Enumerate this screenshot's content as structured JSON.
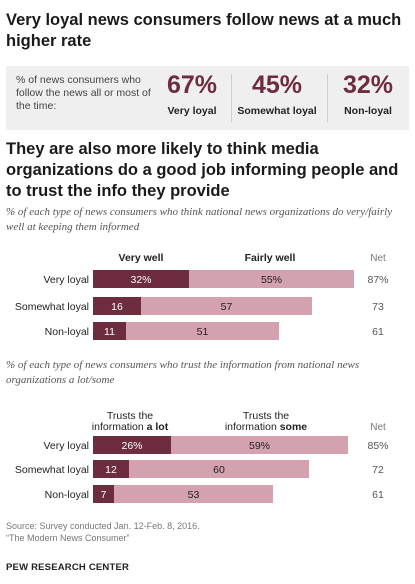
{
  "headline": "Very loyal news consumers follow news at a much higher rate",
  "stat_box": {
    "description": "% of news consumers who follow the news all or most of the time:",
    "stats": [
      {
        "value": "67%",
        "label": "Very loyal"
      },
      {
        "value": "45%",
        "label": "Somewhat loyal"
      },
      {
        "value": "32%",
        "label": "Non-loyal"
      }
    ]
  },
  "headline2": "They are also more likely to think media organizations do a good job informing people and to trust the info they provide",
  "colors": {
    "dark": "#6e2c3f",
    "light": "#d4a1ae"
  },
  "chart_data": [
    {
      "type": "bar",
      "stacked": true,
      "orientation": "horizontal",
      "subtitle": "% of each type of news consumers who think national news organizations do very/fairly well at keeping them informed",
      "categories": [
        "Very loyal",
        "Somewhat loyal",
        "Non-loyal"
      ],
      "series": [
        {
          "name": "Very well",
          "values": [
            32,
            16,
            11
          ],
          "labels": [
            "32%",
            "16",
            "11"
          ]
        },
        {
          "name": "Fairly well",
          "values": [
            55,
            57,
            51
          ],
          "labels": [
            "55%",
            "57",
            "51"
          ]
        }
      ],
      "net_header": "Net",
      "net": [
        "87%",
        "73",
        "61"
      ]
    },
    {
      "type": "bar",
      "stacked": true,
      "orientation": "horizontal",
      "subtitle": "% of each type of news consumers who trust the information from national news organizations a lot/some",
      "categories": [
        "Very loyal",
        "Somewhat loyal",
        "Non-loyal"
      ],
      "series": [
        {
          "name": "Trusts the information a lot",
          "name_lines": [
            "Trusts the",
            "information ",
            "a lot"
          ],
          "values": [
            26,
            12,
            7
          ],
          "labels": [
            "26%",
            "12",
            "7"
          ]
        },
        {
          "name": "Trusts the information some",
          "name_lines": [
            "Trusts the",
            "information ",
            "some"
          ],
          "values": [
            59,
            60,
            53
          ],
          "labels": [
            "59%",
            "60",
            "53"
          ]
        }
      ],
      "net_header": "Net",
      "net": [
        "85%",
        "72",
        "61"
      ]
    }
  ],
  "footer": {
    "source": "Source: Survey conducted Jan. 12-Feb. 8, 2016.",
    "report": "“The Modern News Consumer”",
    "brand": "PEW RESEARCH CENTER"
  }
}
